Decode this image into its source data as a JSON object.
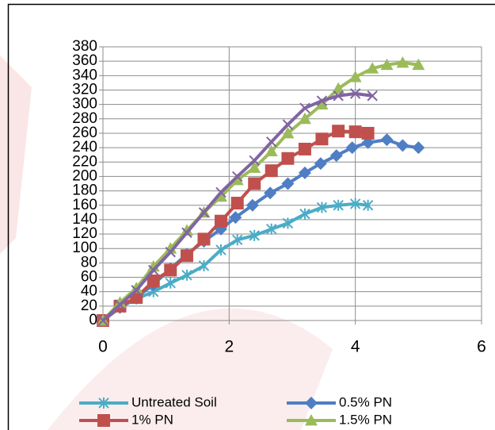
{
  "chart_data": {
    "type": "line",
    "xlim": [
      0,
      6
    ],
    "xticks": [
      0,
      2,
      4,
      6
    ],
    "ylim": [
      0,
      380
    ],
    "yticks": [
      0,
      20,
      40,
      60,
      80,
      100,
      120,
      140,
      160,
      180,
      200,
      220,
      240,
      260,
      280,
      300,
      320,
      340,
      360,
      380
    ],
    "grid": true,
    "legend": "bottom",
    "series": [
      {
        "name": "Untreated Soil",
        "color": "#4bacc6",
        "marker": "star",
        "x": [
          0,
          0.27,
          0.53,
          0.8,
          1.07,
          1.33,
          1.6,
          1.87,
          2.13,
          2.4,
          2.67,
          2.93,
          3.2,
          3.47,
          3.73,
          4.0,
          4.2
        ],
        "values": [
          0,
          18,
          30,
          40,
          52,
          63,
          76,
          98,
          112,
          118,
          127,
          135,
          148,
          157,
          160,
          162,
          160
        ]
      },
      {
        "name": "0.5% PN",
        "color": "#4f7ec4",
        "marker": "diamond",
        "x": [
          0,
          0.27,
          0.53,
          0.8,
          1.07,
          1.33,
          1.6,
          1.87,
          2.1,
          2.37,
          2.65,
          2.93,
          3.2,
          3.45,
          3.7,
          3.95,
          4.2,
          4.5,
          4.75,
          5.0
        ],
        "values": [
          0,
          18,
          32,
          50,
          72,
          92,
          110,
          127,
          143,
          160,
          177,
          190,
          205,
          218,
          229,
          240,
          247,
          251,
          243,
          240
        ]
      },
      {
        "name": "1% PN",
        "color": "#c0504d",
        "marker": "square",
        "x": [
          0,
          0.27,
          0.53,
          0.8,
          1.07,
          1.33,
          1.6,
          1.87,
          2.13,
          2.4,
          2.67,
          2.93,
          3.2,
          3.47,
          3.73,
          4.0,
          4.2
        ],
        "values": [
          0,
          20,
          32,
          55,
          70,
          90,
          113,
          138,
          163,
          190,
          208,
          225,
          238,
          252,
          263,
          262,
          260
        ]
      },
      {
        "name": "1.5% PN",
        "color": "#9bbb59",
        "marker": "triangle",
        "x": [
          0,
          0.27,
          0.53,
          0.8,
          1.07,
          1.33,
          1.6,
          1.87,
          2.13,
          2.4,
          2.67,
          2.93,
          3.2,
          3.47,
          3.73,
          4.0,
          4.27,
          4.5,
          4.75,
          5.0
        ],
        "values": [
          0,
          25,
          45,
          75,
          100,
          125,
          150,
          172,
          195,
          212,
          235,
          260,
          280,
          300,
          322,
          338,
          350,
          355,
          358,
          355
        ]
      },
      {
        "color": "#8064a2",
        "marker": "cross",
        "x": [
          0,
          0.27,
          0.53,
          0.8,
          1.07,
          1.33,
          1.6,
          1.87,
          2.13,
          2.4,
          2.67,
          2.93,
          3.2,
          3.47,
          3.73,
          4.0,
          4.27
        ],
        "values": [
          0,
          22,
          42,
          70,
          95,
          122,
          150,
          178,
          200,
          222,
          248,
          272,
          295,
          305,
          312,
          315,
          312
        ]
      }
    ]
  }
}
